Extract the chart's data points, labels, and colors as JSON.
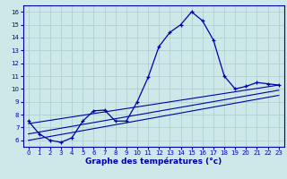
{
  "title": "Graphe des températures (°c)",
  "bg_color": "#cce8e8",
  "grid_color": "#b0d0d0",
  "line_color": "#0000aa",
  "ylim": [
    5.5,
    16.5
  ],
  "xlim": [
    -0.5,
    23.5
  ],
  "yticks": [
    6,
    7,
    8,
    9,
    10,
    11,
    12,
    13,
    14,
    15,
    16
  ],
  "xticks": [
    0,
    1,
    2,
    3,
    4,
    5,
    6,
    7,
    8,
    9,
    10,
    11,
    12,
    13,
    14,
    15,
    16,
    17,
    18,
    19,
    20,
    21,
    22,
    23
  ],
  "main_series_x": [
    0,
    1,
    2,
    3,
    4,
    5,
    6,
    7,
    8,
    9,
    10,
    11,
    12,
    13,
    14,
    15,
    16,
    17,
    18,
    19,
    20,
    21,
    22,
    23
  ],
  "main_series_y": [
    7.5,
    6.5,
    6.0,
    5.85,
    6.2,
    7.5,
    8.3,
    8.35,
    7.5,
    7.5,
    9.0,
    10.9,
    13.3,
    14.4,
    15.0,
    16.0,
    15.3,
    13.8,
    11.0,
    10.0,
    10.2,
    10.5,
    10.4,
    10.3
  ],
  "trend_lines": [
    {
      "x0": 0,
      "y0": 7.3,
      "x1": 23,
      "y1": 10.3
    },
    {
      "x0": 0,
      "y0": 6.5,
      "x1": 23,
      "y1": 9.9
    },
    {
      "x0": 0,
      "y0": 6.0,
      "x1": 23,
      "y1": 9.5
    }
  ]
}
